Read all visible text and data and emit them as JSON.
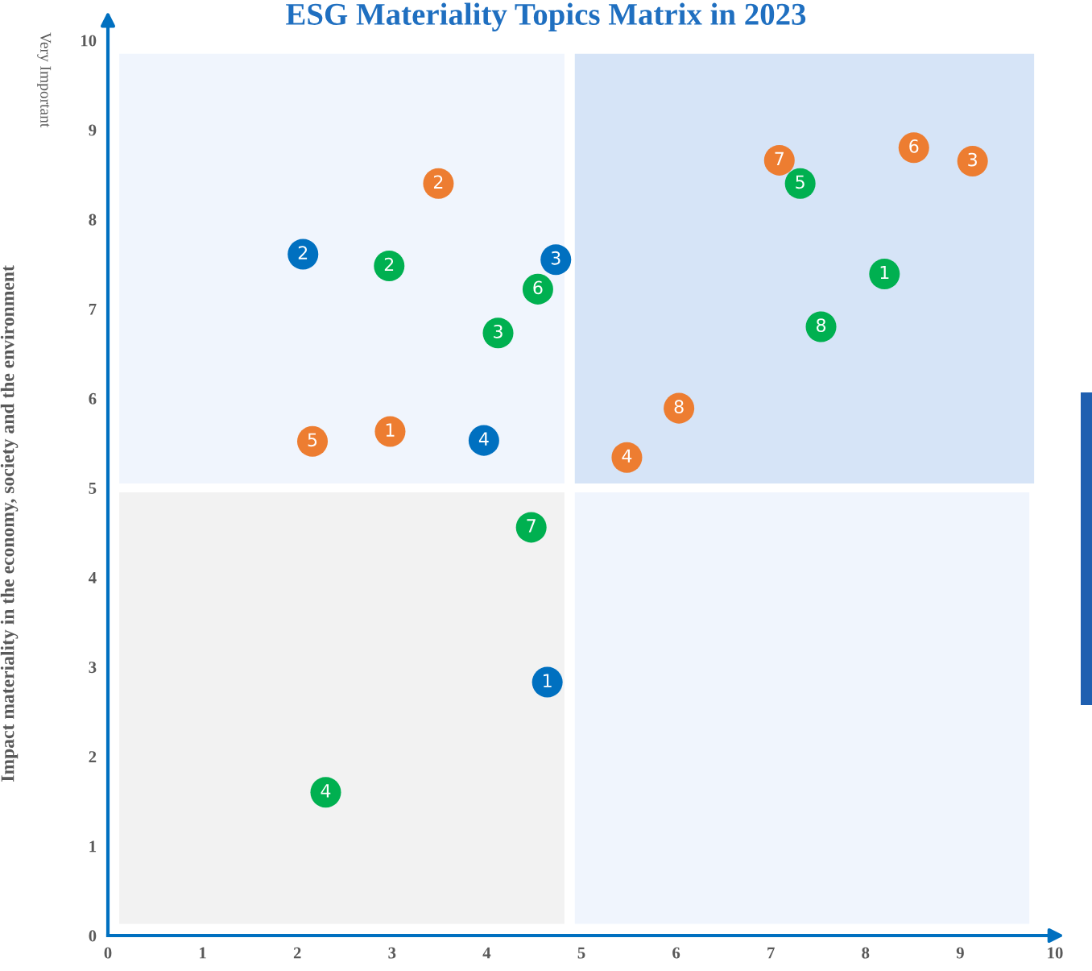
{
  "chart_data": {
    "type": "scatter",
    "title": "ESG Materiality Topics Matrix in 2023",
    "ylabel": "Impact materiality in the economy, society and the environment",
    "annotations": [
      "Very Important",
      {
        "text": "1",
        "x": 4.64,
        "y": 2.83
      },
      {
        "text": "2",
        "x": 2.06,
        "y": 7.61
      },
      {
        "text": "3",
        "x": 4.73,
        "y": 7.55
      },
      {
        "text": "4",
        "x": 3.97,
        "y": 5.53
      },
      {
        "text": "1",
        "x": 8.2,
        "y": 7.39
      },
      {
        "text": "2",
        "x": 2.97,
        "y": 7.48
      },
      {
        "text": "3",
        "x": 4.12,
        "y": 6.73
      },
      {
        "text": "4",
        "x": 2.3,
        "y": 1.6
      },
      {
        "text": "5",
        "x": 7.31,
        "y": 8.4
      },
      {
        "text": "6",
        "x": 4.54,
        "y": 7.22
      },
      {
        "text": "7",
        "x": 4.47,
        "y": 4.56
      },
      {
        "text": "8",
        "x": 7.53,
        "y": 6.8
      },
      {
        "text": "1",
        "x": 2.98,
        "y": 5.63
      },
      {
        "text": "2",
        "x": 3.49,
        "y": 8.4
      },
      {
        "text": "3",
        "x": 9.13,
        "y": 8.65
      },
      {
        "text": "4",
        "x": 5.48,
        "y": 5.34
      },
      {
        "text": "5",
        "x": 2.16,
        "y": 5.52
      },
      {
        "text": "6",
        "x": 8.51,
        "y": 8.8
      },
      {
        "text": "7",
        "x": 7.09,
        "y": 8.66
      },
      {
        "text": "8",
        "x": 6.03,
        "y": 5.89
      }
    ],
    "xlim": [
      0,
      10
    ],
    "ylim": [
      0,
      10
    ],
    "xticks": [
      0,
      1,
      2,
      3,
      4,
      5,
      6,
      7,
      8,
      9,
      10
    ],
    "yticks": [
      0,
      1,
      2,
      3,
      4,
      5,
      6,
      7,
      8,
      9,
      10
    ],
    "grid": false,
    "marker": "circle",
    "series": [
      {
        "color": "#0070c0",
        "x": [
          4.64,
          2.06,
          4.73,
          3.97
        ],
        "values": [
          2.83,
          7.61,
          7.55,
          5.53
        ]
      },
      {
        "color": "#00b050",
        "x": [
          8.2,
          2.97,
          4.12,
          2.3,
          7.31,
          4.54,
          4.47,
          7.53
        ],
        "values": [
          7.39,
          7.48,
          6.73,
          1.6,
          8.4,
          7.22,
          4.56,
          6.8
        ]
      },
      {
        "color": "#ed7d31",
        "x": [
          2.98,
          3.49,
          9.13,
          5.48,
          2.16,
          8.51,
          7.09,
          6.03
        ],
        "values": [
          5.63,
          8.4,
          8.65,
          5.34,
          5.52,
          8.8,
          8.66,
          5.89
        ]
      }
    ]
  }
}
